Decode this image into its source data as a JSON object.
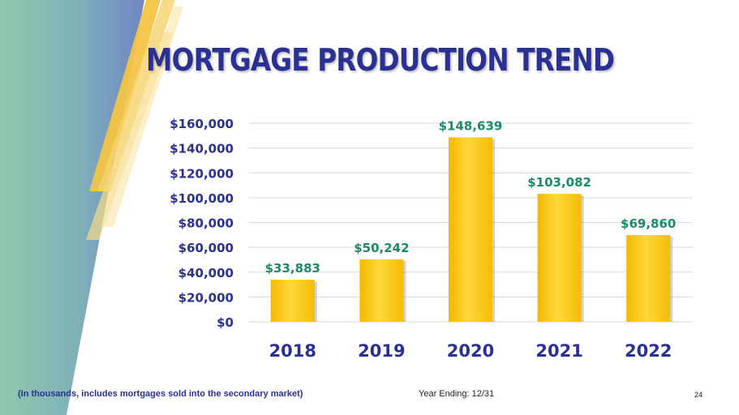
{
  "slide": {
    "title": "MORTGAGE PRODUCTION TREND",
    "footnote": "(In thousands, includes mortgages sold into the secondary market)",
    "year_ending": "Year Ending: 12/31",
    "page_number": "24"
  },
  "colors": {
    "title": "#2a3192",
    "bar": "#f7c41a",
    "bar_highlight": "#fde36a",
    "value_label": "#1a8a6a",
    "axis_text": "#2a3192",
    "grid": "#d9d9d9"
  },
  "chart_data": {
    "type": "bar",
    "title": "MORTGAGE PRODUCTION TREND",
    "categories": [
      "2018",
      "2019",
      "2020",
      "2021",
      "2022"
    ],
    "values": [
      33883,
      50242,
      148639,
      103082,
      69860
    ],
    "value_labels": [
      "$33,883",
      "$50,242",
      "$148,639",
      "$103,082",
      "$69,860"
    ],
    "ylim": [
      0,
      160000
    ],
    "yticks": [
      0,
      20000,
      40000,
      60000,
      80000,
      100000,
      120000,
      140000,
      160000
    ],
    "ytick_labels": [
      "$0",
      "$20,000",
      "$40,000",
      "$60,000",
      "$80,000",
      "$100,000",
      "$120,000",
      "$140,000",
      "$160,000"
    ],
    "xlabel": "",
    "ylabel": "",
    "grid": true
  }
}
